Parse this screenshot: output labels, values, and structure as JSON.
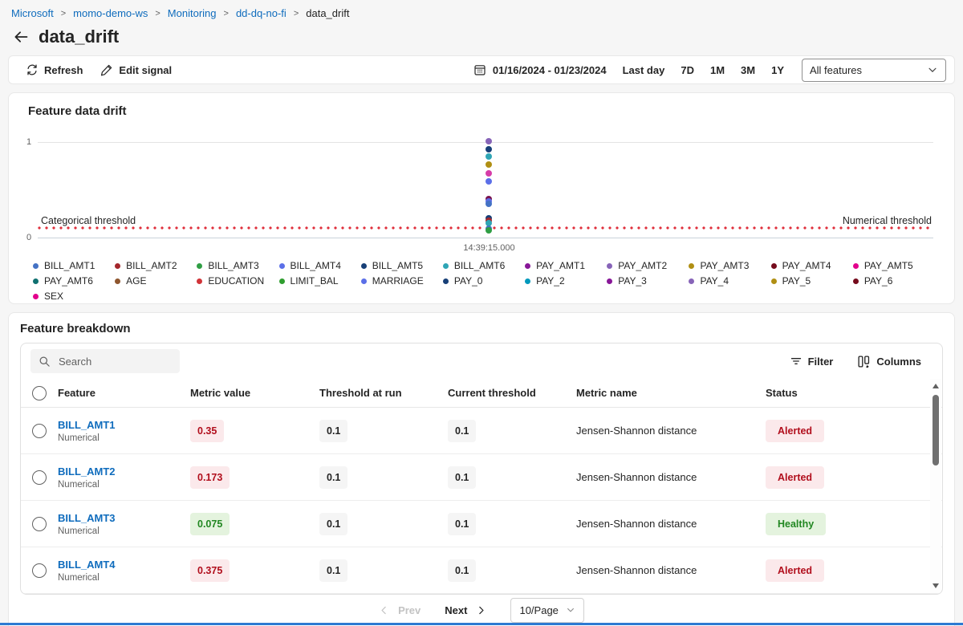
{
  "breadcrumb": {
    "separator": ">",
    "items": [
      {
        "label": "Microsoft",
        "link": true
      },
      {
        "label": "momo-demo-ws",
        "link": true
      },
      {
        "label": "Monitoring",
        "link": true
      },
      {
        "label": "dd-dq-no-fi",
        "link": true
      },
      {
        "label": "data_drift",
        "link": false
      }
    ]
  },
  "header": {
    "title": "data_drift"
  },
  "toolbar": {
    "refresh_label": "Refresh",
    "edit_signal_label": "Edit signal",
    "date_range": "01/16/2024 - 01/23/2024",
    "range_buttons": [
      "Last day",
      "7D",
      "1M",
      "3M",
      "1Y"
    ],
    "feature_filter_value": "All features"
  },
  "chart_card": {
    "title": "Feature data drift"
  },
  "chart_data": {
    "type": "scatter",
    "title": "Feature data drift",
    "x_ticks": [
      "14:39:15.000"
    ],
    "ylim": [
      0,
      1
    ],
    "y_ticks": [
      "1",
      "0"
    ],
    "grid": true,
    "legend_position": "bottom",
    "threshold": {
      "value": 0.1,
      "color": "#e0303c",
      "categorical_label": "Categorical threshold",
      "numerical_label": "Numerical threshold"
    },
    "points": [
      {
        "feature": "PAY_4",
        "value": 1.0,
        "color": "#8764b8"
      },
      {
        "feature": "PAY_0",
        "value": 0.92,
        "color": "#173f77"
      },
      {
        "feature": "BILL_AMT6",
        "value": 0.84,
        "color": "#2fa5b5"
      },
      {
        "feature": "PAY_5",
        "value": 0.76,
        "color": "#b08f13"
      },
      {
        "feature": "SEX",
        "value": 0.67,
        "color": "#d63ca8"
      },
      {
        "feature": "MARRIAGE",
        "value": 0.58,
        "color": "#5b6fe8"
      },
      {
        "feature": "PAY_AMT4",
        "value": 0.4,
        "color": "#7a134f"
      },
      {
        "feature": "BILL_AMT4",
        "value": 0.375,
        "color": "#5b6fe8"
      },
      {
        "feature": "BILL_AMT1",
        "value": 0.35,
        "color": "#4472c4"
      },
      {
        "feature": "BILL_AMT5",
        "value": 0.2,
        "color": "#173f77"
      },
      {
        "feature": "BILL_AMT2",
        "value": 0.173,
        "color": "#a4262c"
      },
      {
        "feature": "PAY_AMT6",
        "value": 0.15,
        "color": "#2fa5b5"
      },
      {
        "feature": "PAY_AMT1",
        "value": 0.095,
        "color": "#4472c4"
      },
      {
        "feature": "BILL_AMT3",
        "value": 0.075,
        "color": "#2f9e44"
      }
    ],
    "legend": [
      {
        "label": "BILL_AMT1",
        "color": "#4472c4"
      },
      {
        "label": "BILL_AMT2",
        "color": "#a4262c"
      },
      {
        "label": "BILL_AMT3",
        "color": "#2f9e44"
      },
      {
        "label": "BILL_AMT4",
        "color": "#5b6fe8"
      },
      {
        "label": "BILL_AMT5",
        "color": "#173f77"
      },
      {
        "label": "BILL_AMT6",
        "color": "#2fa5b5"
      },
      {
        "label": "PAY_AMT1",
        "color": "#881798"
      },
      {
        "label": "PAY_AMT2",
        "color": "#8764b8"
      },
      {
        "label": "PAY_AMT3",
        "color": "#b08f13"
      },
      {
        "label": "PAY_AMT4",
        "color": "#750b1c"
      },
      {
        "label": "PAY_AMT5",
        "color": "#e3008c"
      },
      {
        "label": "PAY_AMT6",
        "color": "#0f7070"
      },
      {
        "label": "AGE",
        "color": "#8e562e"
      },
      {
        "label": "EDUCATION",
        "color": "#d13438"
      },
      {
        "label": "LIMIT_BAL",
        "color": "#2f9e2f"
      },
      {
        "label": "MARRIAGE",
        "color": "#5b6fe8"
      },
      {
        "label": "PAY_0",
        "color": "#173f77"
      },
      {
        "label": "PAY_2",
        "color": "#0099bc"
      },
      {
        "label": "PAY_3",
        "color": "#881798"
      },
      {
        "label": "PAY_4",
        "color": "#8764b8"
      },
      {
        "label": "PAY_5",
        "color": "#b08f13"
      },
      {
        "label": "PAY_6",
        "color": "#750b1c"
      },
      {
        "label": "SEX",
        "color": "#e3008c"
      }
    ]
  },
  "breakdown": {
    "title": "Feature breakdown",
    "search_placeholder": "Search",
    "filter_label": "Filter",
    "columns_label": "Columns",
    "table": {
      "headers": [
        "Feature",
        "Metric value",
        "Threshold at run",
        "Current threshold",
        "Metric name",
        "Status"
      ],
      "rows": [
        {
          "feature": "BILL_AMT1",
          "feature_type": "Numerical",
          "metric_value": "0.35",
          "threshold_at_run": "0.1",
          "current_threshold": "0.1",
          "metric_name": "Jensen-Shannon distance",
          "status": "Alerted"
        },
        {
          "feature": "BILL_AMT2",
          "feature_type": "Numerical",
          "metric_value": "0.173",
          "threshold_at_run": "0.1",
          "current_threshold": "0.1",
          "metric_name": "Jensen-Shannon distance",
          "status": "Alerted"
        },
        {
          "feature": "BILL_AMT3",
          "feature_type": "Numerical",
          "metric_value": "0.075",
          "threshold_at_run": "0.1",
          "current_threshold": "0.1",
          "metric_name": "Jensen-Shannon distance",
          "status": "Healthy"
        },
        {
          "feature": "BILL_AMT4",
          "feature_type": "Numerical",
          "metric_value": "0.375",
          "threshold_at_run": "0.1",
          "current_threshold": "0.1",
          "metric_name": "Jensen-Shannon distance",
          "status": "Alerted"
        }
      ]
    },
    "pagination": {
      "prev_label": "Prev",
      "next_label": "Next",
      "page_size": "10/Page"
    }
  },
  "colors": {
    "link_blue": "#0f6cbd",
    "alerted_bg": "#fbe9eb",
    "alerted_text": "#b10e1c",
    "healthy_bg": "#e4f3de",
    "healthy_text": "#218721",
    "neutral_badge_bg": "#f5f5f5",
    "threshold_red": "#e0303c",
    "bottom_bar_blue": "#2d7ad2"
  }
}
